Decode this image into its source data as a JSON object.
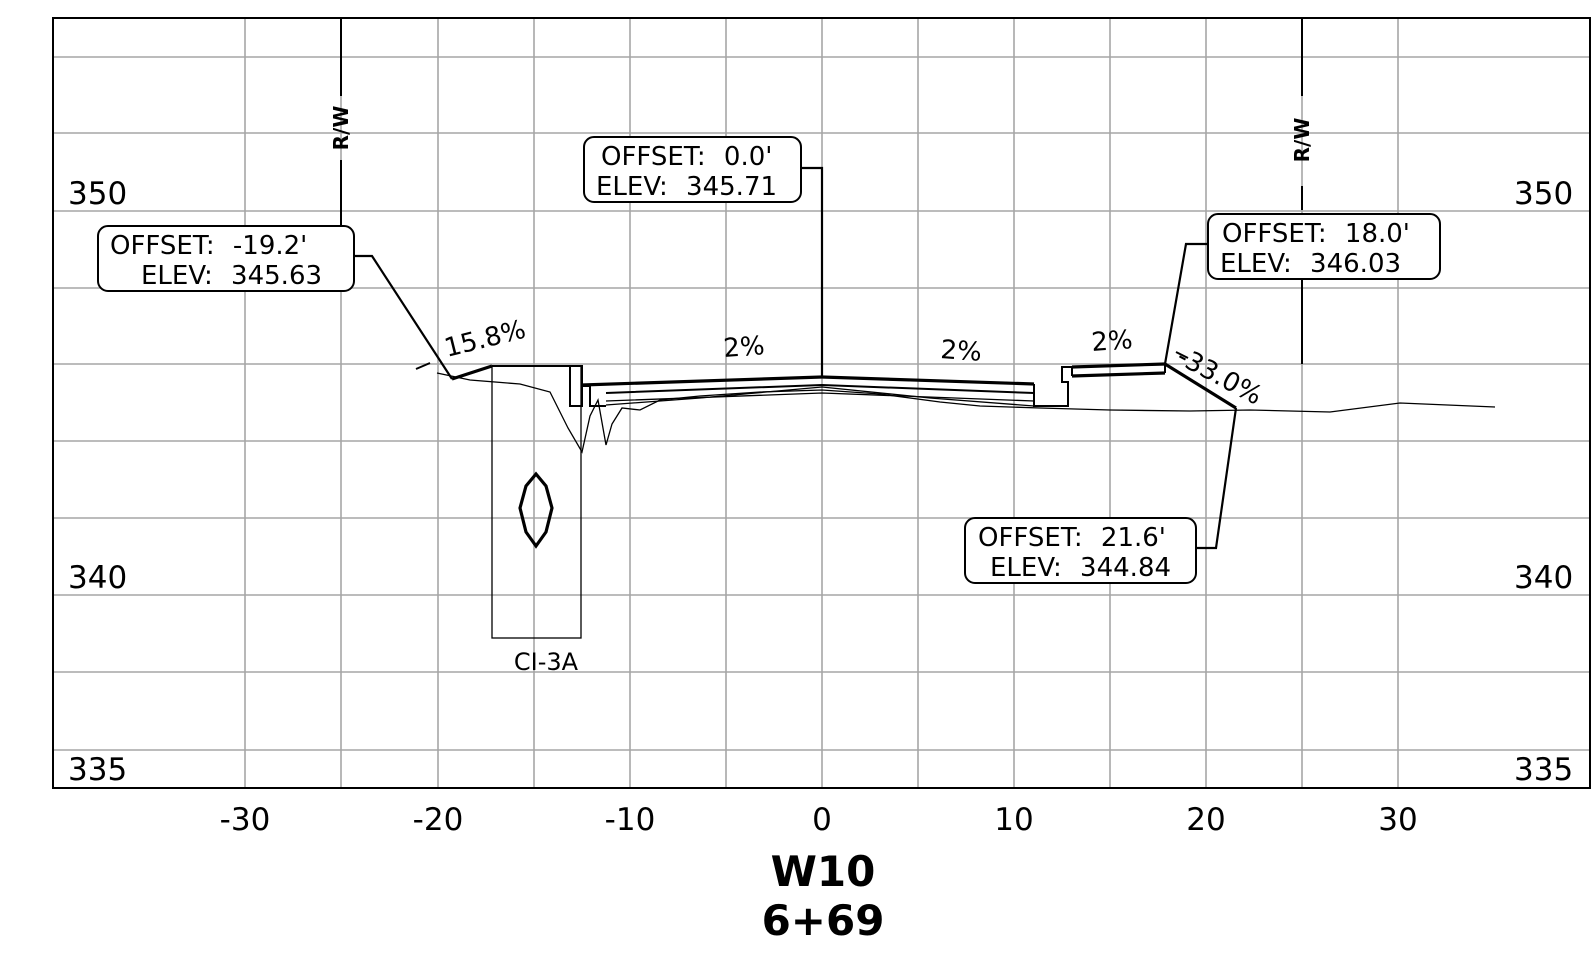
{
  "section": {
    "alignment": "W10",
    "station": "6+69"
  },
  "axes": {
    "x_ticks": [
      "-30",
      "-20",
      "-10",
      "0",
      "10",
      "20",
      "30"
    ],
    "y_left": [
      "350",
      "340",
      "335"
    ],
    "y_right": [
      "350",
      "340",
      "335"
    ]
  },
  "callouts": [
    {
      "id": "left-hinge",
      "offset_label": "OFFSET:",
      "offset_value": "-19.2'",
      "elev_label": "ELEV:",
      "elev_value": "345.63"
    },
    {
      "id": "centerline",
      "offset_label": "OFFSET:",
      "offset_value": "0.0'",
      "elev_label": "ELEV:",
      "elev_value": "345.71"
    },
    {
      "id": "right-hinge",
      "offset_label": "OFFSET:",
      "offset_value": "18.0'",
      "elev_label": "ELEV:",
      "elev_value": "346.03"
    },
    {
      "id": "right-catch",
      "offset_label": "OFFSET:",
      "offset_value": "21.6'",
      "elev_label": "ELEV:",
      "elev_value": "344.84"
    }
  ],
  "slopes": {
    "left_fill": "15.8%",
    "lane_left": "2%",
    "lane_right": "2%",
    "shoulder_right": "2%",
    "right_slope": "-33.0%"
  },
  "markers": {
    "rw_left": "R/W",
    "rw_right": "R/W"
  },
  "structure": {
    "label": "CI-3A"
  }
}
